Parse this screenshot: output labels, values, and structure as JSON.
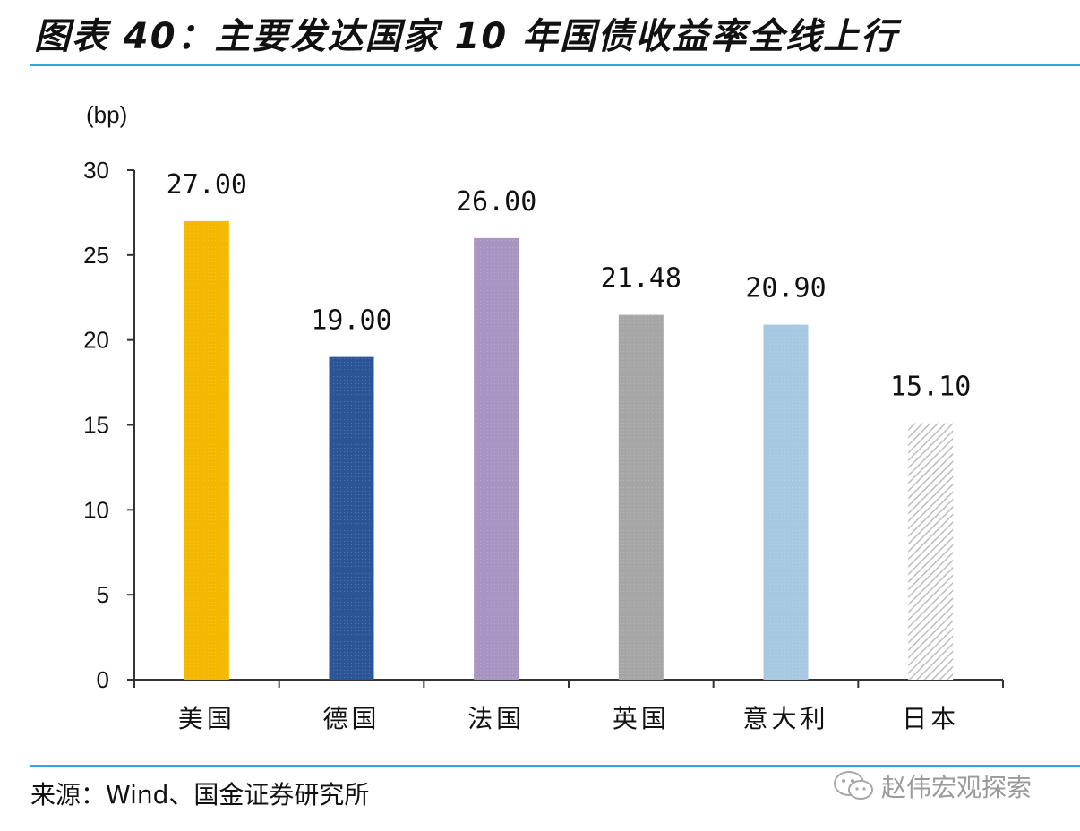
{
  "header": {
    "title": "图表 40：主要发达国家 10 年国债收益率全线上行"
  },
  "chart_data": {
    "type": "bar",
    "ylabel": "(bp)",
    "categories": [
      "美国",
      "德国",
      "法国",
      "英国",
      "意大利",
      "日本"
    ],
    "values": [
      27.0,
      19.0,
      26.0,
      21.48,
      20.9,
      15.1
    ],
    "data_labels": [
      "27.00",
      "19.00",
      "26.00",
      "21.48",
      "20.90",
      "15.10"
    ],
    "bar_colors": [
      "#f5b800",
      "#2b5597",
      "#a895c2",
      "#a6a6a6",
      "#a6c8e0",
      "#d0d0d0"
    ],
    "yticks": [
      0,
      5,
      10,
      15,
      20,
      25,
      30
    ],
    "ylim": [
      0,
      30
    ],
    "grid": false,
    "legend": "none"
  },
  "footer": {
    "source": "来源：Wind、国金证券研究所",
    "watermark_text": "赵伟宏观探索",
    "watermark_icon": "wechat-icon"
  },
  "colors": {
    "rule": "#2aa8de",
    "axis": "#333333"
  }
}
